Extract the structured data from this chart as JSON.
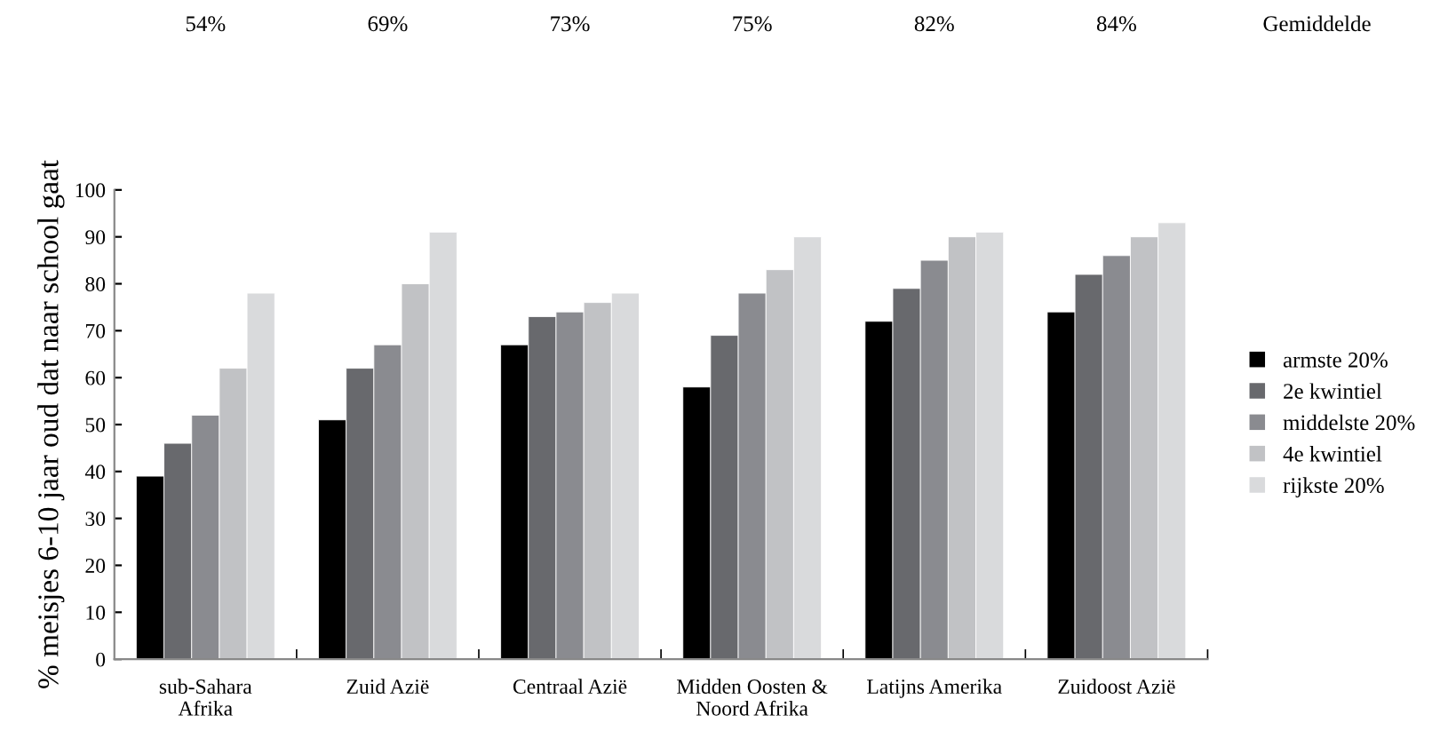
{
  "chart_data": {
    "type": "bar",
    "ylabel": "% meisjes 6-10 jaar oud dat naar school gaat",
    "categories": [
      "sub-Sahara\nAfrika",
      "Zuid Azië",
      "Centraal Azië",
      "Midden Oosten &\nNoord Afrika",
      "Latijns Amerika",
      "Zuidoost Azië"
    ],
    "series": [
      {
        "name": "armste 20%",
        "color": "#000000",
        "values": [
          39,
          51,
          67,
          58,
          72,
          74
        ]
      },
      {
        "name": "2e kwintiel",
        "color": "#68696d",
        "values": [
          46,
          62,
          73,
          69,
          79,
          82
        ]
      },
      {
        "name": "middelste 20%",
        "color": "#8a8b90",
        "values": [
          52,
          67,
          74,
          78,
          85,
          86
        ]
      },
      {
        "name": "4e kwintiel",
        "color": "#c1c2c5",
        "values": [
          62,
          80,
          76,
          83,
          90,
          90
        ]
      },
      {
        "name": "rijkste 20%",
        "color": "#d9dadc",
        "values": [
          78,
          91,
          78,
          90,
          91,
          93
        ]
      }
    ],
    "ylim": [
      0,
      100
    ],
    "yticks": [
      0,
      10,
      20,
      30,
      40,
      50,
      60,
      70,
      80,
      90,
      100
    ],
    "grid": false,
    "legend": "right",
    "annotations": [
      "54%",
      "69%",
      "73%",
      "75%",
      "82%",
      "84%",
      "Gemiddelde"
    ]
  }
}
